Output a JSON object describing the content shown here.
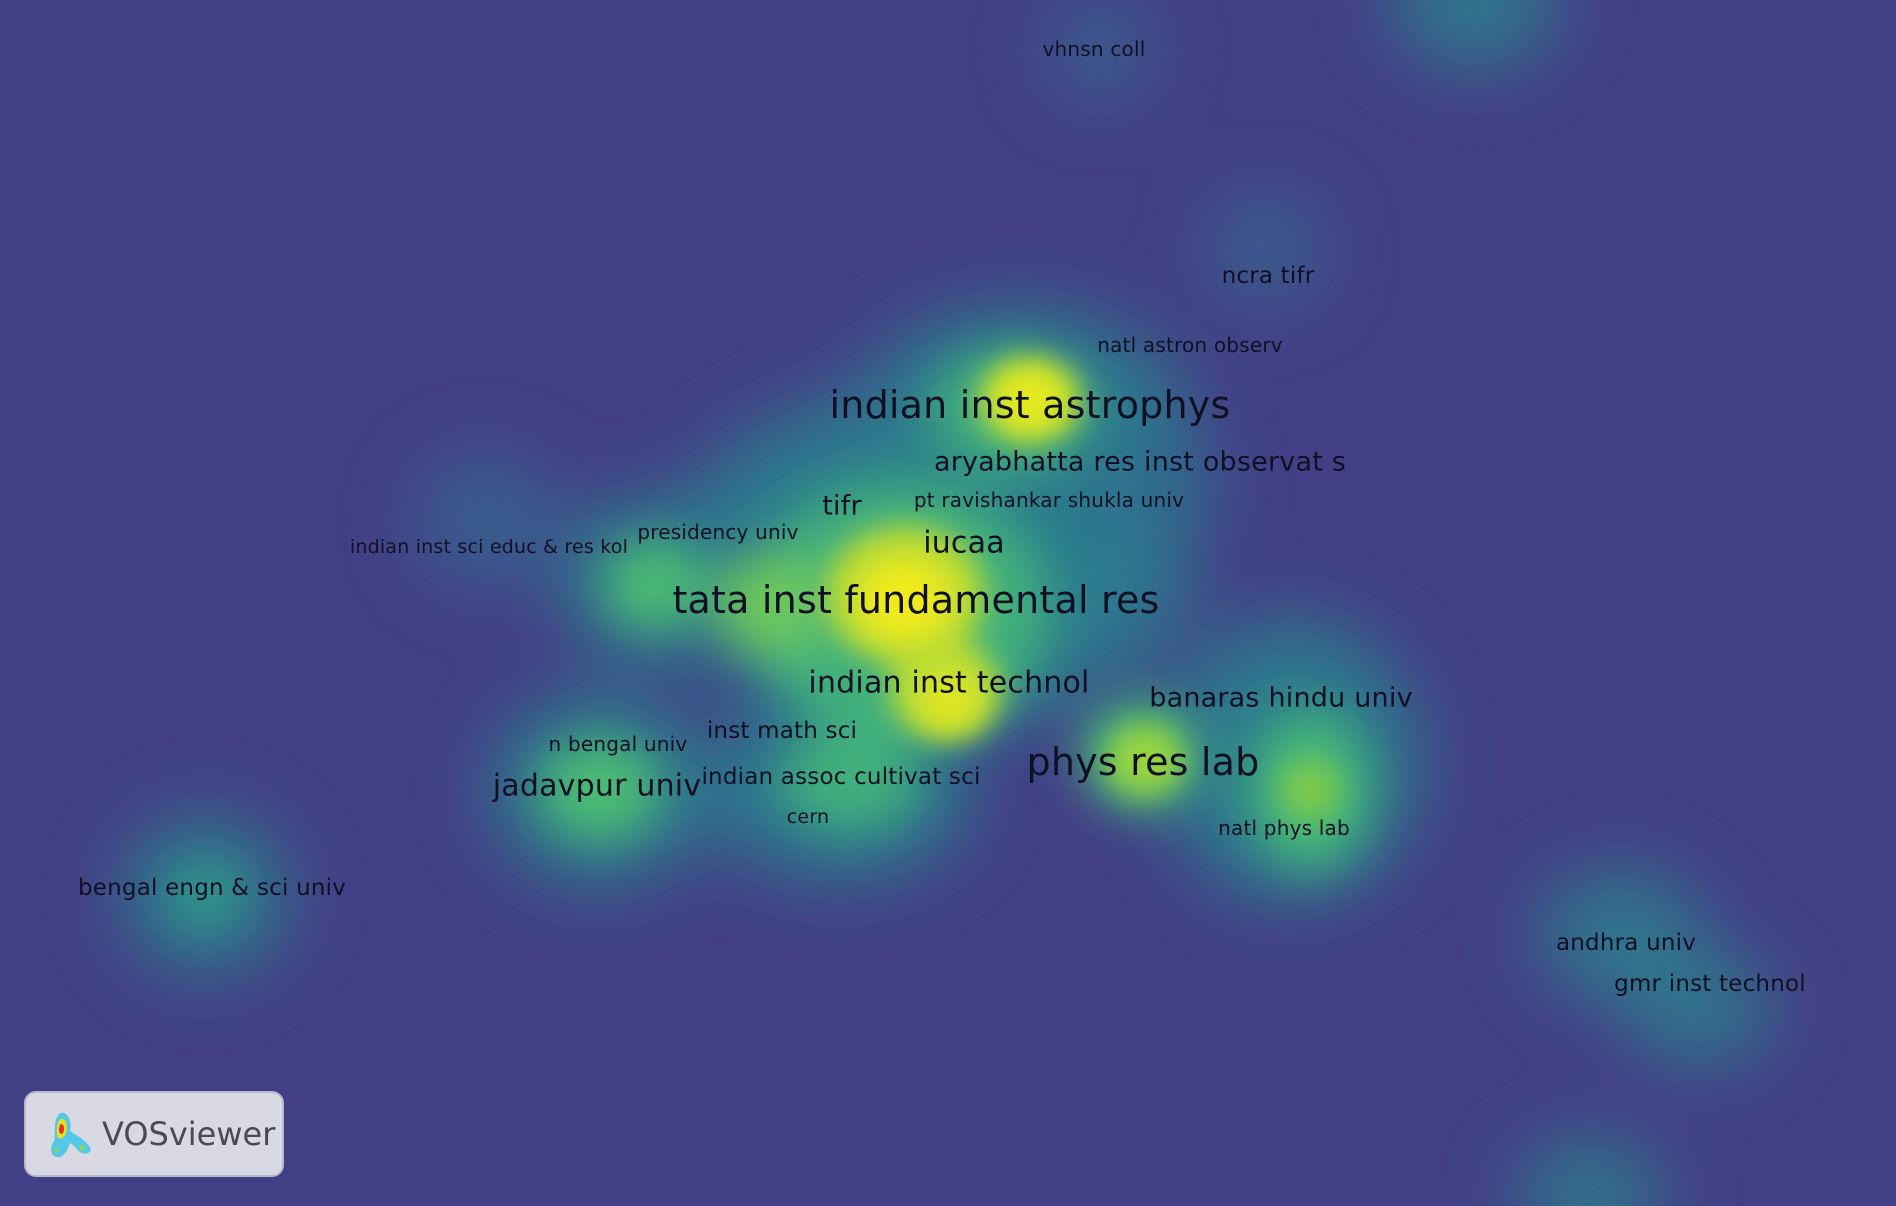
{
  "app": {
    "name": "VOSviewer"
  },
  "colors": {
    "background": "#433f86",
    "label": "#101025",
    "badge_bg": "#d9d9e3"
  },
  "map": {
    "view": "density-visualization",
    "labels": [
      {
        "id": "vhnsn-coll",
        "text": "vhnsn coll"
      },
      {
        "id": "ncra-tifr",
        "text": "ncra tifr"
      },
      {
        "id": "natl-astron-observ",
        "text": "natl astron observ"
      },
      {
        "id": "indian-inst-astrophys",
        "text": "indian inst astrophys"
      },
      {
        "id": "aryabhatta-res-inst-observat-s",
        "text": "aryabhatta res inst observat s"
      },
      {
        "id": "pt-ravishankar-shukla-univ",
        "text": "pt ravishankar shukla univ"
      },
      {
        "id": "tifr",
        "text": "tifr"
      },
      {
        "id": "presidency-univ",
        "text": "presidency univ"
      },
      {
        "id": "indian-inst-sci-educ-res-kol",
        "text": "indian inst sci educ & res kol"
      },
      {
        "id": "iucaa",
        "text": "iucaa"
      },
      {
        "id": "tata-inst-fundamental-res",
        "text": "tata inst fundamental res"
      },
      {
        "id": "indian-inst-technol",
        "text": "indian inst technol"
      },
      {
        "id": "banaras-hindu-univ",
        "text": "banaras hindu univ"
      },
      {
        "id": "inst-math-sci",
        "text": "inst math sci"
      },
      {
        "id": "n-bengal-univ",
        "text": "n bengal univ"
      },
      {
        "id": "phys-res-lab",
        "text": "phys res lab"
      },
      {
        "id": "jadavpur-univ",
        "text": "jadavpur univ"
      },
      {
        "id": "indian-assoc-cultivat-sci",
        "text": "indian assoc cultivat sci"
      },
      {
        "id": "cern",
        "text": "cern"
      },
      {
        "id": "natl-phys-lab",
        "text": "natl phys lab"
      },
      {
        "id": "bengal-engn-sci-univ",
        "text": "bengal engn & sci univ"
      },
      {
        "id": "andhra-univ",
        "text": "andhra univ"
      },
      {
        "id": "gmr-inst-technol",
        "text": "gmr inst technol"
      }
    ]
  }
}
